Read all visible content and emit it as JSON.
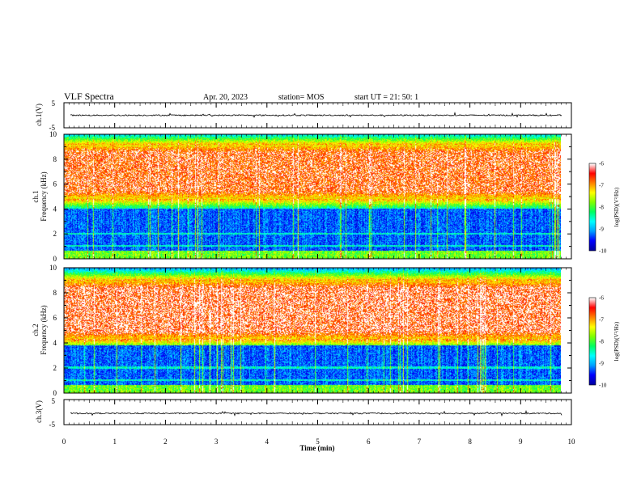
{
  "header": {
    "title": "VLF Spectra",
    "date": "Apr. 20, 2023",
    "station": "station= MOS",
    "start": "start  UT  =   21: 50: 1"
  },
  "chart_data": [
    {
      "type": "line",
      "panel": "ch1-waveform",
      "ylabel": "ch.1(V)",
      "ylim": [
        -5,
        5
      ],
      "yticks": [
        "5",
        "-5"
      ],
      "xlim": [
        0,
        10
      ],
      "series": [
        {
          "values_description": "near-zero waveform",
          "level": 0,
          "noise": 0.25
        }
      ]
    },
    {
      "type": "heatmap",
      "panel": "ch1-spectrogram",
      "ylabel": "ch.1\nFrequency (kHz)",
      "ylabel_lines": [
        "ch.1",
        "Frequency (kHz)"
      ],
      "ylim": [
        0,
        10
      ],
      "yticks": [
        "0",
        "2",
        "4",
        "6",
        "8",
        "10"
      ],
      "xlim": [
        0,
        9.8
      ],
      "profile": {
        "band_low_khz": 4.8,
        "band_high_khz": 9.2,
        "quiet_below_khz": 4.0,
        "peak_level": -6.3
      },
      "colorbar": {
        "label": "log(PSD)(V²/Hz)",
        "range": [
          -10,
          -6
        ],
        "ticks": [
          "-6",
          "-7",
          "-8",
          "-9",
          "-10"
        ]
      }
    },
    {
      "type": "heatmap",
      "panel": "ch2-spectrogram",
      "ylabel": "ch.2\nFrequency (kHz)",
      "ylabel_lines": [
        "ch.2",
        "Frequency (kHz)"
      ],
      "ylim": [
        0,
        10
      ],
      "yticks": [
        "0",
        "2",
        "4",
        "6",
        "8",
        "10"
      ],
      "xlim": [
        0,
        9.8
      ],
      "profile": {
        "band_low_khz": 4.3,
        "band_high_khz": 9.0,
        "quiet_below_khz": 3.8,
        "peak_level": -6.2
      },
      "colorbar": {
        "label": "log(PSD)(V²/Hz)",
        "range": [
          -10,
          -6
        ],
        "ticks": [
          "-6",
          "-7",
          "-8",
          "-9",
          "-10"
        ]
      }
    },
    {
      "type": "line",
      "panel": "ch3-waveform",
      "ylabel": "ch.3(V)",
      "ylim": [
        -5,
        5
      ],
      "yticks": [
        "5",
        "-5"
      ],
      "xlim": [
        0,
        10
      ],
      "series": [
        {
          "values_description": "near-zero waveform",
          "level": -0.5,
          "noise": 0.25
        }
      ]
    }
  ],
  "xaxis": {
    "label": "Time  (min)",
    "ticks": [
      "0",
      "1",
      "2",
      "3",
      "4",
      "5",
      "6",
      "7",
      "8",
      "9",
      "10"
    ]
  },
  "colors": {
    "colormap": [
      "#0000a0",
      "#0000ff",
      "#00a0ff",
      "#00ffff",
      "#00ff60",
      "#80ff00",
      "#ffff00",
      "#ff8000",
      "#ff0000",
      "#ffffff"
    ]
  }
}
